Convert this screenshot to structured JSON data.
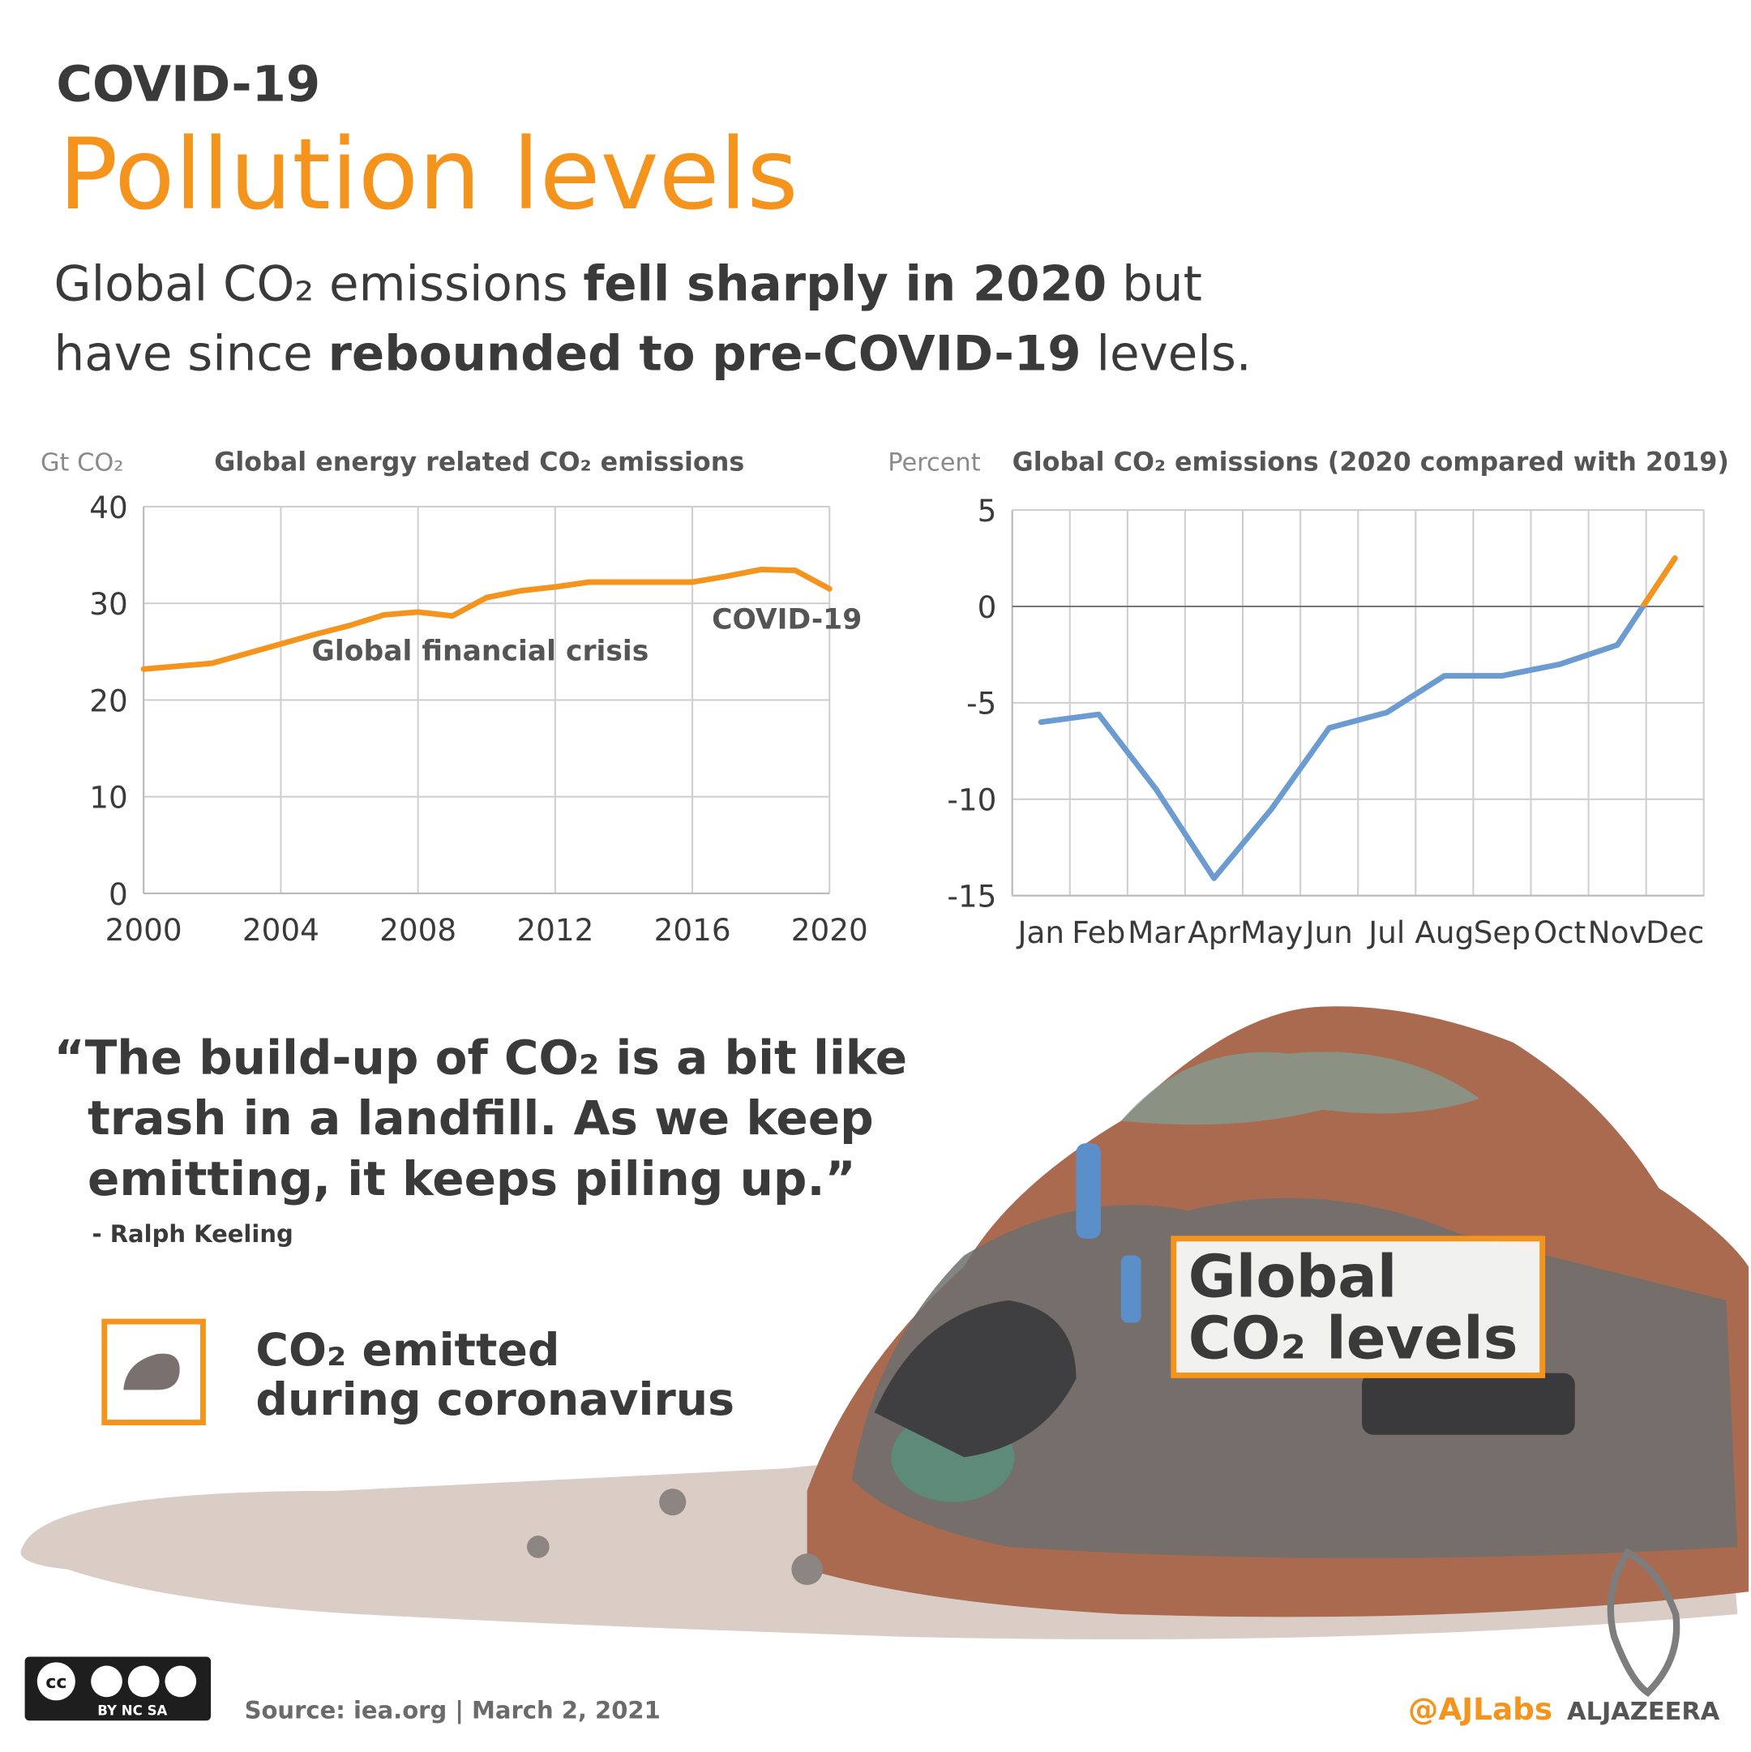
{
  "header": {
    "kicker": "COVID-19",
    "title": "Pollution levels",
    "subtitle": [
      [
        "Global CO₂ emissions ",
        "fell sharply in 2020",
        " but"
      ],
      [
        "have since ",
        "rebounded to pre-COVID-19",
        " levels."
      ]
    ]
  },
  "chart_data": [
    {
      "type": "line",
      "title": "Global energy related CO₂ emissions",
      "y_label": "Gt CO₂",
      "x": [
        2000,
        2001,
        2002,
        2003,
        2004,
        2005,
        2006,
        2007,
        2008,
        2009,
        2010,
        2011,
        2012,
        2013,
        2014,
        2015,
        2016,
        2017,
        2018,
        2019,
        2020
      ],
      "values": [
        23.2,
        23.5,
        23.8,
        24.8,
        25.8,
        26.8,
        27.7,
        28.8,
        29.1,
        28.7,
        30.6,
        31.3,
        31.7,
        32.2,
        32.2,
        32.2,
        32.2,
        32.8,
        33.5,
        33.4,
        31.5
      ],
      "color": "#f5941d",
      "xlim": [
        2000,
        2020
      ],
      "xticks": [
        2000,
        2004,
        2008,
        2012,
        2016,
        2020
      ],
      "ylim": [
        0,
        40
      ],
      "yticks": [
        0,
        10,
        20,
        30,
        40
      ],
      "grid": true,
      "annotations": [
        "Global financial crisis",
        "COVID-19"
      ]
    },
    {
      "type": "line",
      "title": "Global CO₂ emissions (2020 compared with 2019)",
      "y_label": "Percent",
      "categories": [
        "Jan",
        "Feb",
        "Mar",
        "Apr",
        "May",
        "Jun",
        "Jul",
        "Aug",
        "Sep",
        "Oct",
        "Nov",
        "Dec"
      ],
      "values": [
        -6.0,
        -5.6,
        -9.5,
        -14.1,
        -10.5,
        -6.3,
        -5.5,
        -3.6,
        -3.6,
        -3.0,
        -2.0,
        2.5
      ],
      "color": "#6b9bd0",
      "positive_color": "#f5941d",
      "ylim": [
        -15,
        5
      ],
      "yticks": [
        -15,
        -10,
        -5,
        0,
        5
      ],
      "grid": true
    }
  ],
  "quote": {
    "lines": [
      "“The build-up of CO₂ is a bit like",
      "trash in a landfill. As we keep",
      "emitting, it keeps piling up.”"
    ],
    "author": "- Ralph Keeling"
  },
  "legend": [
    "CO₂ emitted",
    "during coronavirus"
  ],
  "landfill_label": [
    "Global",
    "CO₂ levels"
  ],
  "footer": {
    "license": "BY  NC  SA",
    "license_icon": "cc",
    "source": "Source: iea.org  | March 2, 2021",
    "handle": "@AJLabs",
    "brand": "ALJAZEERA"
  }
}
